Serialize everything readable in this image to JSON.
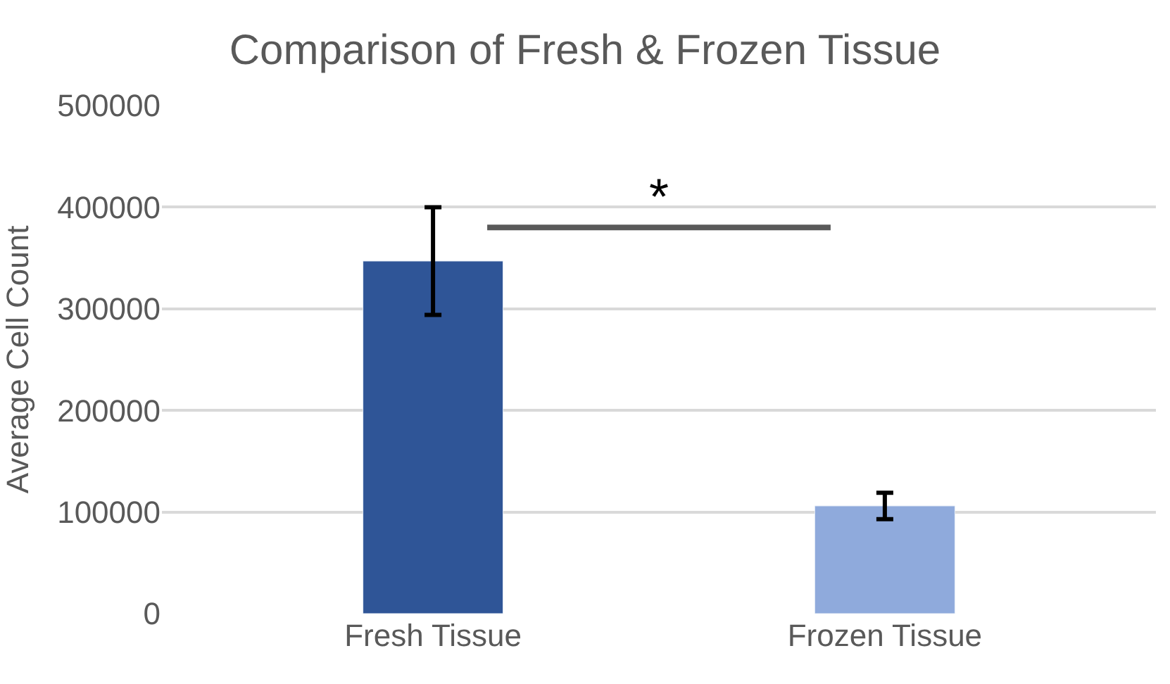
{
  "chart_data": {
    "type": "bar",
    "title": "Comparison of Fresh & Frozen Tissue",
    "ylabel": "Average Cell Count",
    "categories": [
      "Fresh Tissue",
      "Frozen Tissue"
    ],
    "series": [
      {
        "values": [
          347000,
          106000
        ],
        "colors": [
          "#2f5597",
          "#8faadc"
        ],
        "errors": [
          53000,
          13000
        ]
      }
    ],
    "ylim": [
      0,
      500000
    ],
    "yticks": [
      0,
      100000,
      200000,
      300000,
      400000,
      500000
    ],
    "grid": "y",
    "annotations": [
      "*"
    ]
  }
}
